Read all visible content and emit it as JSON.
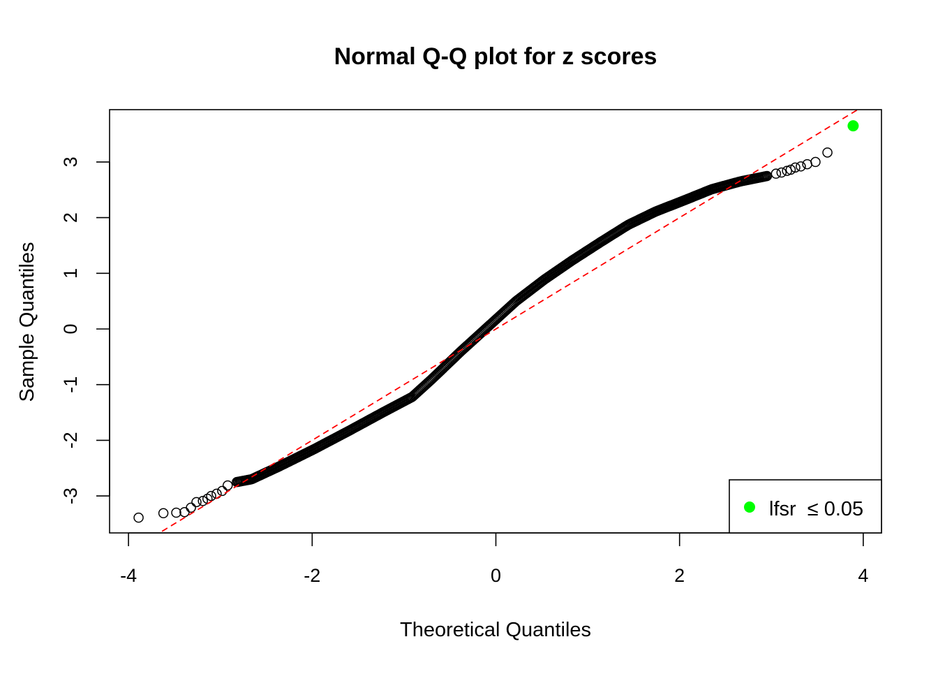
{
  "chart_data": {
    "type": "scatter",
    "title": "Normal Q-Q plot for z scores",
    "xlabel": "Theoretical Quantiles",
    "ylabel": "Sample Quantiles",
    "xlim": [
      -4.2,
      4.2
    ],
    "ylim": [
      -3.66,
      3.94
    ],
    "xticks": [
      -4,
      -2,
      0,
      2,
      4
    ],
    "xtick_labels": [
      "-4",
      "-2",
      "0",
      "2",
      "4"
    ],
    "yticks": [
      -3,
      -2,
      -1,
      0,
      1,
      2,
      3
    ],
    "ytick_labels": [
      "-3",
      "-2",
      "-1",
      "0",
      "1",
      "2",
      "3"
    ],
    "grid": false,
    "reference_line": {
      "slope": 1.0,
      "intercept": 0.0,
      "color": "#ff0000",
      "style": "dashed"
    },
    "main_curve": [
      [
        -2.82,
        -2.75
      ],
      [
        -2.66,
        -2.7
      ],
      [
        -2.36,
        -2.47
      ],
      [
        -1.98,
        -2.16
      ],
      [
        -1.6,
        -1.83
      ],
      [
        -1.22,
        -1.49
      ],
      [
        -0.91,
        -1.22
      ],
      [
        -0.69,
        -0.89
      ],
      [
        -0.38,
        -0.4
      ],
      [
        -0.08,
        0.05
      ],
      [
        0.22,
        0.5
      ],
      [
        0.53,
        0.89
      ],
      [
        0.83,
        1.23
      ],
      [
        1.14,
        1.56
      ],
      [
        1.44,
        1.87
      ],
      [
        1.74,
        2.11
      ],
      [
        2.05,
        2.31
      ],
      [
        2.35,
        2.51
      ],
      [
        2.66,
        2.65
      ],
      [
        2.96,
        2.75
      ]
    ],
    "lower_tail_points": [
      [
        -3.89,
        -3.39
      ],
      [
        -3.62,
        -3.31
      ],
      [
        -3.48,
        -3.3
      ],
      [
        -3.39,
        -3.29
      ],
      [
        -3.32,
        -3.21
      ],
      [
        -3.26,
        -3.11
      ],
      [
        -3.19,
        -3.09
      ],
      [
        -3.14,
        -3.05
      ],
      [
        -3.1,
        -3.0
      ],
      [
        -3.04,
        -2.96
      ],
      [
        -2.98,
        -2.91
      ],
      [
        -2.92,
        -2.81
      ]
    ],
    "upper_tail_points": [
      [
        3.05,
        2.79
      ],
      [
        3.11,
        2.81
      ],
      [
        3.17,
        2.84
      ],
      [
        3.21,
        2.86
      ],
      [
        3.26,
        2.9
      ],
      [
        3.32,
        2.92
      ],
      [
        3.39,
        2.96
      ],
      [
        3.48,
        3.0
      ],
      [
        3.61,
        3.17
      ]
    ],
    "highlighted_points": [
      [
        3.89,
        3.65
      ]
    ],
    "point_color": "#000000",
    "highlight_color": "#00ff00",
    "legend": {
      "placement": "bottom-right",
      "label": "lfsr  ≤ 0.05",
      "marker_color": "#00ff00"
    }
  }
}
